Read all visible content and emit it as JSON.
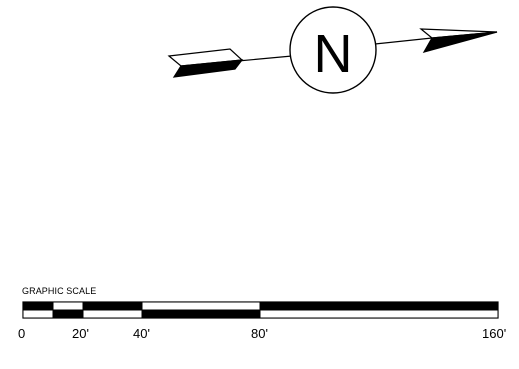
{
  "north_arrow": {
    "letter": "N"
  },
  "graphic_scale": {
    "title": "GRAPHIC SCALE",
    "tick_labels": [
      "0",
      "20'",
      "40'",
      "80'",
      "160'"
    ]
  },
  "colors": {
    "ink": "#000000",
    "paper": "#ffffff"
  }
}
